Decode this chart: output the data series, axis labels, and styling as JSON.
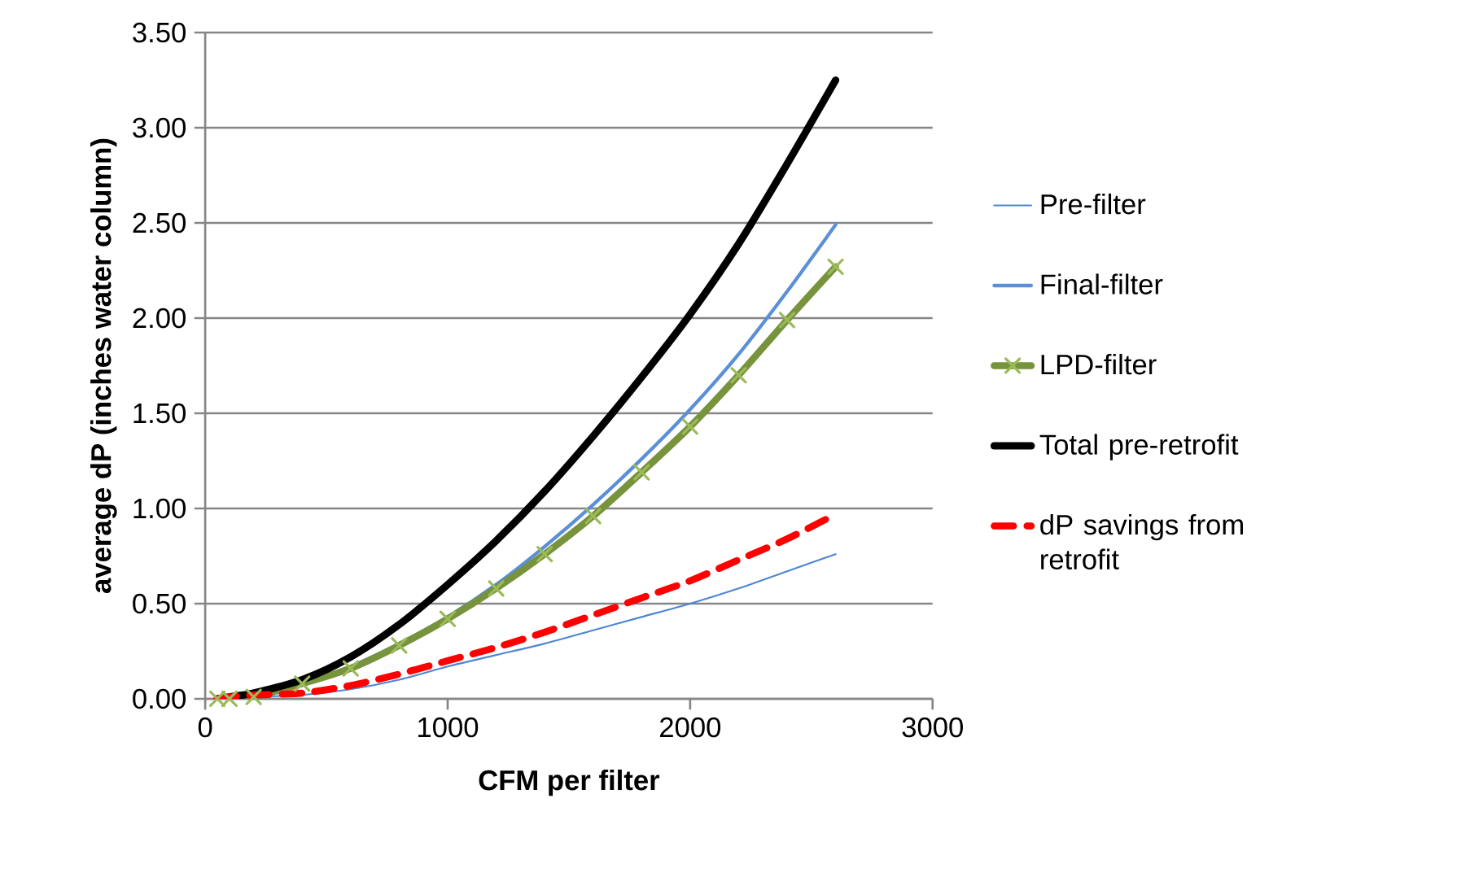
{
  "chart_data": {
    "type": "line",
    "xlabel": "CFM per filter",
    "ylabel": "average dP (inches water column)",
    "x": [
      50,
      100,
      200,
      400,
      600,
      800,
      1000,
      1200,
      1400,
      1600,
      1800,
      2000,
      2200,
      2400,
      2600
    ],
    "series": [
      {
        "name": "Pre-filter",
        "color": "#4f86d4",
        "marker": "none",
        "line_style": "solid",
        "values": [
          0.0,
          0.0,
          0.01,
          0.02,
          0.05,
          0.1,
          0.17,
          0.23,
          0.29,
          0.36,
          0.43,
          0.5,
          0.58,
          0.67,
          0.76
        ]
      },
      {
        "name": "Final-filter",
        "color": "#5b8fd6",
        "marker": "none",
        "line_style": "solid",
        "values": [
          0.0,
          0.01,
          0.02,
          0.08,
          0.17,
          0.29,
          0.43,
          0.6,
          0.8,
          1.02,
          1.26,
          1.52,
          1.81,
          2.14,
          2.49
        ]
      },
      {
        "name": "LPD-filter",
        "color": "#77933c",
        "marker": "cross",
        "line_style": "solid",
        "values": [
          0.0,
          0.0,
          0.01,
          0.08,
          0.16,
          0.28,
          0.42,
          0.58,
          0.76,
          0.96,
          1.19,
          1.43,
          1.7,
          1.99,
          2.27
        ]
      },
      {
        "name": "Total pre-retrofit",
        "color": "#000000",
        "marker": "none",
        "line_style": "solid",
        "values": [
          0.0,
          0.01,
          0.03,
          0.1,
          0.22,
          0.39,
          0.6,
          0.83,
          1.09,
          1.38,
          1.69,
          2.02,
          2.39,
          2.81,
          3.25
        ]
      },
      {
        "name": "dP savings from retrofit",
        "color": "#ff0000",
        "marker": "none",
        "line_style": "dashed",
        "values": [
          0.0,
          0.01,
          0.02,
          0.03,
          0.07,
          0.13,
          0.2,
          0.27,
          0.35,
          0.44,
          0.53,
          0.62,
          0.73,
          0.84,
          0.97
        ]
      }
    ],
    "xlim": [
      0,
      3000
    ],
    "xticks": [
      0,
      1000,
      2000,
      3000
    ],
    "ylim": [
      0,
      3.5
    ],
    "yticks": [
      {
        "value": 0,
        "label": "0.00"
      },
      {
        "value": 0.5,
        "label": "0.50"
      },
      {
        "value": 1,
        "label": "1.00"
      },
      {
        "value": 1.5,
        "label": "1.50"
      },
      {
        "value": 2,
        "label": "2.00"
      },
      {
        "value": 2.5,
        "label": "2.50"
      },
      {
        "value": 3,
        "label": "3.00"
      },
      {
        "value": 3.5,
        "label": "3.50"
      }
    ],
    "grid": "y",
    "legend": "right"
  }
}
